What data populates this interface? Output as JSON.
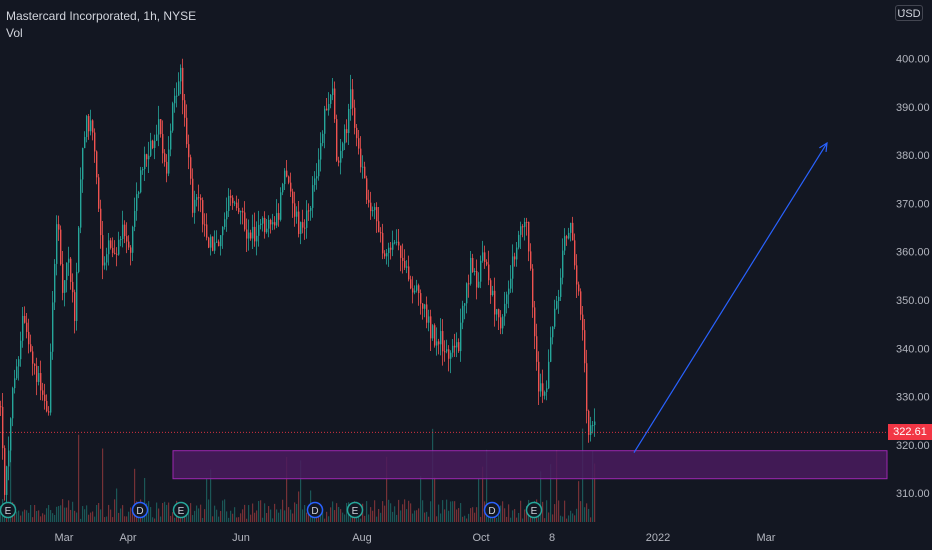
{
  "legend": {
    "symbol_line": "Mastercard Incorporated, 1h, NYSE",
    "volume_label": "Vol"
  },
  "currency_button": {
    "label": "USD",
    "icon": "chevron-down-icon"
  },
  "last_price": "322.61",
  "colors": {
    "background": "#131722",
    "up": "#26a69a",
    "down": "#ef5350",
    "zone_fill": "#4a1b5e",
    "zone_border": "#9c27b0",
    "arrow": "#2962ff",
    "price_line": "#f23645",
    "axis_text": "#b2b5be"
  },
  "chart_data": {
    "type": "candlestick",
    "title": "Mastercard Incorporated, 1h, NYSE",
    "y_axis": {
      "ticks": [
        310,
        320,
        330,
        340,
        350,
        360,
        370,
        380,
        390,
        400
      ],
      "range": [
        303.5,
        411.7
      ]
    },
    "x_axis": {
      "ticks": [
        "Mar",
        "Apr",
        "Jun",
        "Aug",
        "Oct",
        "8",
        "2022",
        "Mar"
      ]
    },
    "price_path": [
      [
        0,
        328
      ],
      [
        4,
        310
      ],
      [
        12,
        330
      ],
      [
        22,
        346
      ],
      [
        32,
        338
      ],
      [
        40,
        332
      ],
      [
        48,
        325
      ],
      [
        52,
        350
      ],
      [
        57,
        368
      ],
      [
        62,
        352
      ],
      [
        67,
        360
      ],
      [
        74,
        346
      ],
      [
        80,
        376
      ],
      [
        86,
        388
      ],
      [
        92,
        384
      ],
      [
        98,
        370
      ],
      [
        103,
        355
      ],
      [
        109,
        362
      ],
      [
        115,
        358
      ],
      [
        122,
        365
      ],
      [
        130,
        360
      ],
      [
        137,
        372
      ],
      [
        143,
        378
      ],
      [
        150,
        382
      ],
      [
        158,
        387
      ],
      [
        165,
        376
      ],
      [
        172,
        390
      ],
      [
        180,
        398
      ],
      [
        186,
        384
      ],
      [
        192,
        368
      ],
      [
        198,
        373
      ],
      [
        204,
        364
      ],
      [
        210,
        362
      ],
      [
        218,
        360
      ],
      [
        225,
        370
      ],
      [
        232,
        372
      ],
      [
        240,
        367
      ],
      [
        250,
        363
      ],
      [
        260,
        365
      ],
      [
        270,
        366
      ],
      [
        278,
        368
      ],
      [
        284,
        375
      ],
      [
        290,
        372
      ],
      [
        297,
        366
      ],
      [
        303,
        364
      ],
      [
        310,
        371
      ],
      [
        318,
        378
      ],
      [
        324,
        388
      ],
      [
        332,
        392
      ],
      [
        337,
        378
      ],
      [
        343,
        382
      ],
      [
        350,
        392
      ],
      [
        356,
        383
      ],
      [
        362,
        376
      ],
      [
        368,
        371
      ],
      [
        375,
        367
      ],
      [
        381,
        362
      ],
      [
        387,
        358
      ],
      [
        393,
        364
      ],
      [
        399,
        361
      ],
      [
        406,
        356
      ],
      [
        412,
        353
      ],
      [
        420,
        350
      ],
      [
        428,
        345
      ],
      [
        434,
        342
      ],
      [
        440,
        343
      ],
      [
        446,
        338
      ],
      [
        452,
        340
      ],
      [
        458,
        341
      ],
      [
        464,
        350
      ],
      [
        470,
        357
      ],
      [
        476,
        354
      ],
      [
        482,
        358
      ],
      [
        488,
        355
      ],
      [
        494,
        349
      ],
      [
        500,
        346
      ],
      [
        507,
        350
      ],
      [
        514,
        360
      ],
      [
        520,
        364
      ],
      [
        526,
        366
      ],
      [
        532,
        350
      ],
      [
        538,
        333
      ],
      [
        546,
        331
      ],
      [
        552,
        345
      ],
      [
        558,
        352
      ],
      [
        564,
        363
      ],
      [
        570,
        366
      ],
      [
        576,
        354
      ],
      [
        582,
        342
      ],
      [
        586,
        328
      ],
      [
        589,
        322
      ],
      [
        592,
        324
      ],
      [
        595,
        322.61
      ]
    ],
    "bars": {
      "x_start": 0,
      "x_end": 595,
      "spacing": 2
    },
    "events": [
      {
        "x": 8,
        "label": "E",
        "kind": "earnings"
      },
      {
        "x": 140,
        "label": "D",
        "kind": "dividend"
      },
      {
        "x": 181,
        "label": "E",
        "kind": "earnings"
      },
      {
        "x": 315,
        "label": "D",
        "kind": "dividend"
      },
      {
        "x": 355,
        "label": "E",
        "kind": "earnings"
      },
      {
        "x": 492,
        "label": "D",
        "kind": "dividend"
      },
      {
        "x": 534,
        "label": "E",
        "kind": "earnings"
      }
    ],
    "zone": {
      "x_from": 173,
      "x_to": 887,
      "price_top": 318.8,
      "price_bottom": 313.0
    },
    "arrow": {
      "from": [
        634,
        318.4
      ],
      "to": [
        827,
        382.5
      ]
    },
    "last_price": 322.61
  }
}
